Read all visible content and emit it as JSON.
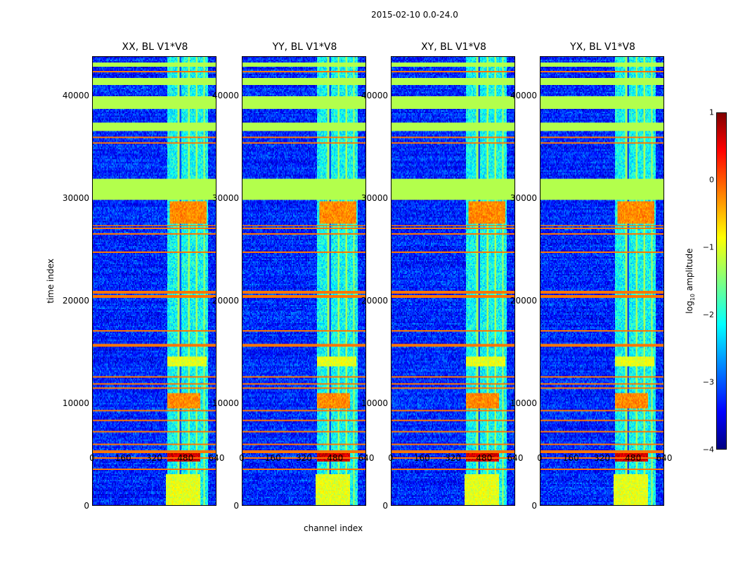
{
  "chart_data": {
    "type": "heatmap",
    "title": "2015-02-10 0.0-24.0",
    "xlabel": "channel index",
    "ylabel": "time index",
    "xlim": [
      0,
      640
    ],
    "ylim": [
      0,
      43800
    ],
    "xticks": [
      "0",
      "160",
      "320",
      "480",
      "640"
    ],
    "xtick_values": [
      0,
      160,
      320,
      480,
      640
    ],
    "yticks": [
      "0",
      "10000",
      "20000",
      "30000",
      "40000"
    ],
    "ytick_values": [
      0,
      10000,
      20000,
      30000,
      40000
    ],
    "panels": [
      {
        "title": "XX, BL V1*V8",
        "seed": 1
      },
      {
        "title": "YY, BL V1*V8",
        "seed": 2
      },
      {
        "title": "XY, BL V1*V8",
        "seed": 3
      },
      {
        "title": "YX, BL V1*V8",
        "seed": 4
      }
    ],
    "features": {
      "background_log_amp": -3.2,
      "rfi_channel_range": [
        390,
        600
      ],
      "flagged_time_bands": [
        [
          29800,
          31900
        ],
        [
          38700,
          39900
        ],
        [
          36500,
          37400
        ],
        [
          41100,
          41700
        ],
        [
          42900,
          43300
        ]
      ],
      "rfi_time_lines": [
        3500,
        4600,
        5200,
        6000,
        7200,
        8300,
        9200,
        11400,
        11800,
        12500,
        15600,
        17000,
        20400,
        20800,
        24700,
        26500,
        27000,
        27300,
        35400,
        35900,
        42400
      ],
      "bright_blocks": [
        {
          "time": [
            27500,
            29700
          ],
          "channels": [
            400,
            590
          ],
          "value": -0.3
        },
        {
          "time": [
            13500,
            14500
          ],
          "channels": [
            390,
            590
          ],
          "value": -1.0
        },
        {
          "time": [
            9500,
            11000
          ],
          "channels": [
            390,
            560
          ],
          "value": -0.3
        },
        {
          "time": [
            4300,
            5000
          ],
          "channels": [
            390,
            560
          ],
          "value": 0.6
        },
        {
          "time": [
            0,
            3000
          ],
          "channels": [
            380,
            560
          ],
          "value": -1.0
        }
      ]
    },
    "colorbar": {
      "label": "log",
      "label_sub": "10",
      "label_rest": " amplitude",
      "range": [
        -4,
        1
      ],
      "ticks": [
        "1",
        "0",
        "−1",
        "−2",
        "−3",
        "−4"
      ],
      "tick_values": [
        1,
        0,
        -1,
        -2,
        -3,
        -4
      ],
      "colormap": "jet"
    }
  }
}
